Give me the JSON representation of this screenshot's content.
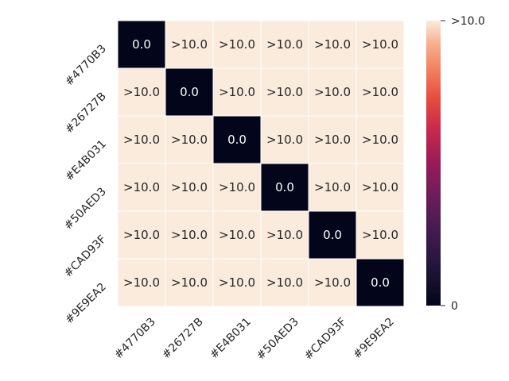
{
  "chart_data": {
    "type": "heatmap",
    "title": "",
    "xlabel": "",
    "ylabel": "",
    "rows": [
      "#4770B3",
      "#26727B",
      "#E4B031",
      "#50AED3",
      "#CAD93F",
      "#9E9EA2"
    ],
    "columns": [
      "#4770B3",
      "#26727B",
      "#E4B031",
      "#50AED3",
      "#CAD93F",
      "#9E9EA2"
    ],
    "values": [
      [
        0,
        10,
        10,
        10,
        10,
        10
      ],
      [
        10,
        0,
        10,
        10,
        10,
        10
      ],
      [
        10,
        10,
        0,
        10,
        10,
        10
      ],
      [
        10,
        10,
        10,
        0,
        10,
        10
      ],
      [
        10,
        10,
        10,
        10,
        0,
        10
      ],
      [
        10,
        10,
        10,
        10,
        10,
        0
      ]
    ],
    "cell_labels": [
      [
        "0.0",
        ">10.0",
        ">10.0",
        ">10.0",
        ">10.0",
        ">10.0"
      ],
      [
        ">10.0",
        "0.0",
        ">10.0",
        ">10.0",
        ">10.0",
        ">10.0"
      ],
      [
        ">10.0",
        ">10.0",
        "0.0",
        ">10.0",
        ">10.0",
        ">10.0"
      ],
      [
        ">10.0",
        ">10.0",
        ">10.0",
        "0.0",
        ">10.0",
        ">10.0"
      ],
      [
        ">10.0",
        ">10.0",
        ">10.0",
        ">10.0",
        "0.0",
        ">10.0"
      ],
      [
        ">10.0",
        ">10.0",
        ">10.0",
        ">10.0",
        ">10.0",
        "0.0"
      ]
    ],
    "value_range": [
      0,
      10
    ],
    "colormap": "rocket",
    "colorbar": {
      "ticks": [
        {
          "value": 0,
          "label": "0"
        },
        {
          "value": 10,
          "label": ">10.0"
        }
      ]
    }
  }
}
